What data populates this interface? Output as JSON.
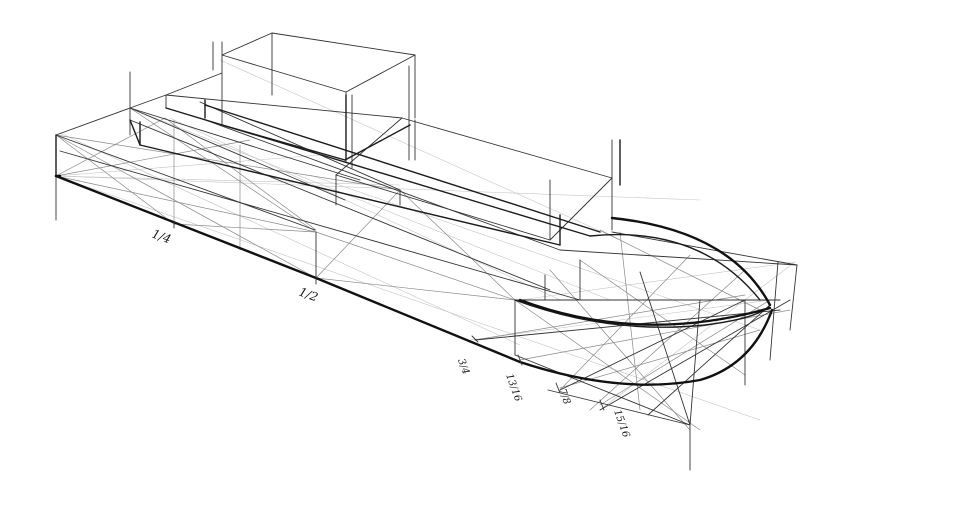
{
  "diagram": {
    "labels": {
      "quarter": "1/4",
      "half": "1/2",
      "three_quarters": "3/4",
      "thirteen_sixteenths": "13/16",
      "seven_eighths": "7/8",
      "fifteen_sixteenths": "15/16"
    },
    "colors": {
      "ink": "#111111",
      "paper": "#ffffff",
      "construction": "#8a8a8a"
    }
  }
}
